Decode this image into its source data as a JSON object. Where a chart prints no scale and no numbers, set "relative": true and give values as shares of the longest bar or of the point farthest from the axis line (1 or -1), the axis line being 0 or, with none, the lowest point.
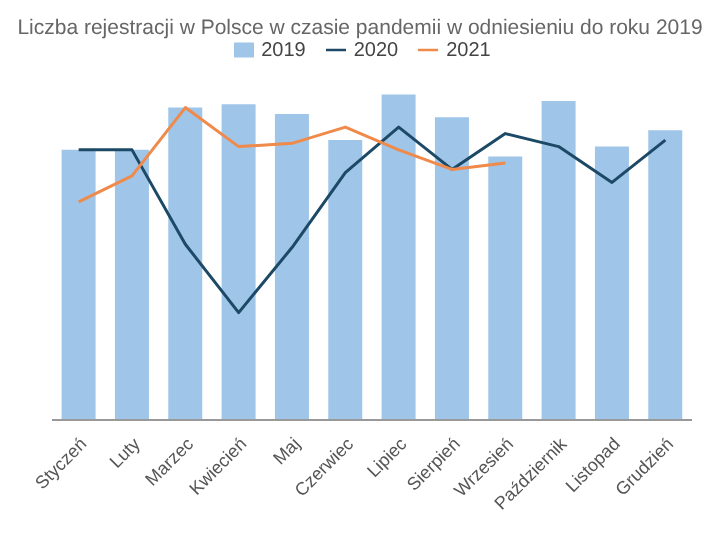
{
  "chart_data": {
    "type": "bar",
    "title": "Liczba rejestracji w Polsce w czasie pandemii w odniesieniu do roku 2019",
    "relative": true,
    "legend": "top",
    "categories": [
      "Styczeń",
      "Luty",
      "Marzec",
      "Kwiecień",
      "Maj",
      "Czerwiec",
      "Lipiec",
      "Sierpień",
      "Wrzesień",
      "Październik",
      "Listopad",
      "Grudzień"
    ],
    "series": [
      {
        "name": "2019",
        "color": "#9fc5e8",
        "values": [
          0.83,
          0.83,
          0.96,
          0.97,
          0.94,
          0.86,
          1,
          0.93,
          0.81,
          0.98,
          0.84,
          0.89
        ]
      },
      {
        "name": "2020",
        "type": "line",
        "color": "#1c4966",
        "values": [
          0.83,
          0.83,
          0.54,
          0.33,
          0.53,
          0.76,
          0.9,
          0.77,
          0.88,
          0.84,
          0.73,
          0.86
        ]
      },
      {
        "name": "2021",
        "type": "line",
        "color": "#f08a4b",
        "values": [
          0.67,
          0.75,
          0.96,
          0.84,
          0.85,
          0.9,
          0.83,
          0.77,
          0.79,
          null,
          null,
          null
        ]
      }
    ]
  }
}
